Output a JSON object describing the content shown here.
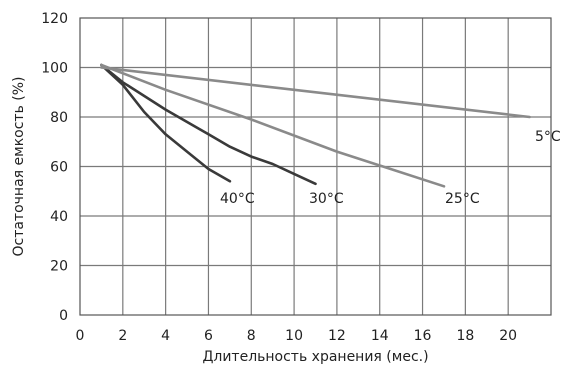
{
  "chart_data": {
    "type": "line",
    "title": "",
    "xlabel": "Длительность хранения (мес.)",
    "ylabel": "Остаточная емкость (%)",
    "xlim": [
      0,
      22
    ],
    "ylim": [
      0,
      120
    ],
    "x_ticks": [
      0,
      2,
      4,
      6,
      8,
      10,
      12,
      14,
      16,
      18,
      20
    ],
    "y_ticks": [
      0,
      20,
      40,
      60,
      80,
      100,
      120
    ],
    "grid": true,
    "legend": "none",
    "series": [
      {
        "name": "40°C",
        "color": "#3a3a3a",
        "x": [
          1,
          2,
          3,
          4,
          5,
          6,
          7
        ],
        "y": [
          101,
          93,
          82,
          73,
          66,
          59,
          54
        ]
      },
      {
        "name": "30°C",
        "color": "#3a3a3a",
        "x": [
          1,
          2,
          4,
          6,
          7,
          8,
          9,
          10,
          11
        ],
        "y": [
          101,
          94,
          83,
          73,
          68,
          64,
          61,
          57,
          53
        ]
      },
      {
        "name": "25°C",
        "color": "#8a8a8a",
        "x": [
          1,
          4,
          8,
          12,
          17
        ],
        "y": [
          101,
          91,
          79,
          66,
          52
        ]
      },
      {
        "name": "5°C",
        "color": "#8a8a8a",
        "x": [
          1,
          21
        ],
        "y": [
          100,
          80
        ]
      }
    ],
    "series_labels": [
      {
        "text": "40°C"
      },
      {
        "text": "30°C"
      },
      {
        "text": "25°C"
      },
      {
        "text": "5°C"
      }
    ]
  }
}
